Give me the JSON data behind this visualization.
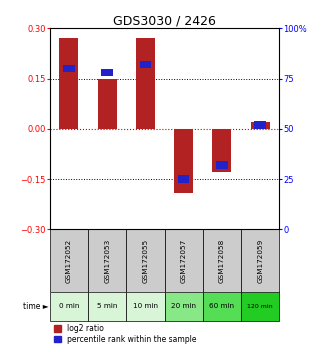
{
  "title": "GDS3030 / 2426",
  "samples": [
    "GSM172052",
    "GSM172053",
    "GSM172055",
    "GSM172057",
    "GSM172058",
    "GSM172059"
  ],
  "time_labels": [
    "0 min",
    "5 min",
    "10 min",
    "20 min",
    "60 min",
    "120 min"
  ],
  "log2_ratio": [
    0.27,
    0.15,
    0.27,
    -0.19,
    -0.13,
    0.02
  ],
  "percentile_rank": [
    80,
    78,
    82,
    25,
    32,
    52
  ],
  "ylim_left": [
    -0.3,
    0.3
  ],
  "ylim_right": [
    0,
    100
  ],
  "yticks_left": [
    -0.3,
    -0.15,
    0,
    0.15,
    0.3
  ],
  "yticks_right": [
    0,
    25,
    50,
    75,
    100
  ],
  "bar_color": "#b22222",
  "percentile_color": "#2222cc",
  "bg_color": "#ffffff",
  "grid_color": "#000000",
  "zero_line_color": "#cc0000",
  "title_fontsize": 9,
  "tick_fontsize": 6,
  "label_fontsize": 6,
  "time_bg_colors": [
    "#d8f5d8",
    "#d8f5d8",
    "#d8f5d8",
    "#88e888",
    "#55dd55",
    "#22cc22"
  ],
  "sample_bg_color": "#cccccc"
}
